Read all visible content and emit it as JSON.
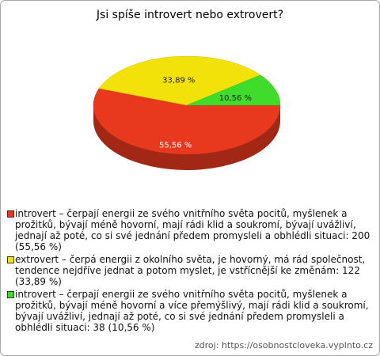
{
  "chart_data": {
    "type": "pie",
    "title": "Jsi spíše introvert nebo extrovert?",
    "categories": [
      "introvert – čerpají energii ze svého vnitřního světa pocitů, myšlenek a prožitků, bývají méně hovorní, mají rádi klid a soukromí, bývají uvážliví, jednají až poté, co si své jednání předem promysleli a obhlédli situaci: 200 (55,56 %)",
      "extrovert – čerpá energii z okolního světa, je hovorný, má rád společnost, tendence nejdříve jednat a potom myslet, je vstřícnější ke změnám: 122 (33,89 %)",
      "introvert – čerpají energii ze svého vnitřního světa pocitů, myšlenek a prožitků, bývají méně hovorní a více přemýšlivý, mají rádi klid a soukromí, bývají uvážliví, jednají až poté, co si své jednání předem promysleli a obhlédli situaci: 38 (10,56 %)"
    ],
    "values": [
      55.56,
      33.89,
      10.56
    ],
    "value_labels": [
      "55,56 %",
      "33,89 %",
      "10,56 %"
    ],
    "colors": [
      "#e8391e",
      "#f2e20a",
      "#3fdc2c"
    ],
    "source": "zdroj: https://osobnostcloveka.vyplnto.cz"
  }
}
